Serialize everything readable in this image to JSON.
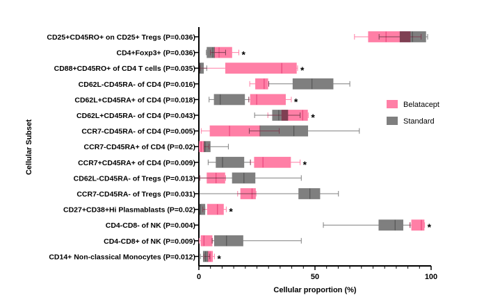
{
  "chart_data": {
    "type": "boxplot-horizontal",
    "xlabel": "Cellular proportion (%)",
    "ylabel": "Cellular Subset",
    "xlim": [
      0,
      100
    ],
    "xticks": [
      0,
      50,
      100
    ],
    "legend_position": "right",
    "series": [
      {
        "name": "Belatacept",
        "color": "#ff7fa6"
      },
      {
        "name": "Standard",
        "color": "#7f7f7f"
      }
    ],
    "significance_marker": "*",
    "categories": [
      {
        "label": "CD25+CD45RO+ on CD25+ Tregs (P=0.036)",
        "sig": false,
        "Belatacept": [
          67,
          73,
          80.6,
          91,
          95.7
        ],
        "Standard": [
          77.6,
          86.6,
          92,
          97.7,
          98.5
        ]
      },
      {
        "label": "CD4+Foxp3+ (P=0.036)",
        "sig": true,
        "Belatacept": [
          5,
          6.7,
          8.7,
          14.2,
          17.2
        ],
        "Standard": [
          3.2,
          3.5,
          6,
          6.7,
          11.5
        ]
      },
      {
        "label": "CD88+CD45RO+ of CD4 T cells (P=0.035)",
        "sig": true,
        "Belatacept": [
          0.5,
          11.5,
          35.7,
          42,
          42.5
        ],
        "Standard": [
          0,
          0,
          0.5,
          2,
          3.4
        ]
      },
      {
        "label": "CD62L-CD45RA- of CD4 (P=0.016)",
        "sig": false,
        "Belatacept": [
          21.9,
          24.4,
          28.1,
          29.7,
          30.1
        ],
        "Standard": [
          30.1,
          40.5,
          48.7,
          57.8,
          65
        ]
      },
      {
        "label": "CD62L+CD45RA+ of CD4 (P=0.018)",
        "sig": true,
        "Belatacept": [
          21.5,
          22.2,
          24.9,
          37.3,
          39.8
        ],
        "Standard": [
          4.4,
          6.6,
          9.2,
          19.7,
          21.5
        ]
      },
      {
        "label": "CD62L+CD45RA- of CD4 (P=0.043)",
        "sig": true,
        "Belatacept": [
          29.7,
          35.7,
          44.7,
          46.8,
          47.1
        ],
        "Standard": [
          24,
          31.7,
          34.4,
          38.3,
          43.6
        ]
      },
      {
        "label": "CCR7-CD45RA- of CD4 (P=0.005)",
        "sig": false,
        "Belatacept": [
          1,
          4.8,
          13.2,
          26.3,
          34.6
        ],
        "Standard": [
          21.7,
          26.3,
          40.9,
          46.9,
          69.1
        ]
      },
      {
        "label": "CCR7-CD45RA+ of CD4 (P=0.02)",
        "sig": false,
        "Belatacept": [
          0.2,
          0.2,
          1,
          2.2,
          4.4
        ],
        "Standard": [
          2.2,
          2.2,
          2.7,
          4.9,
          12.7
        ]
      },
      {
        "label": "CCR7+CD45RA+ of CD4 (P=0.009)",
        "sig": true,
        "Belatacept": [
          22.2,
          23.9,
          27.6,
          39.5,
          43.6
        ],
        "Standard": [
          4,
          7.4,
          10.2,
          19.4,
          22.2
        ]
      },
      {
        "label": "CD62L-CD45RA- of Tregs (P=0.013)",
        "sig": false,
        "Belatacept": [
          0.4,
          3.5,
          7.4,
          11.2,
          11.5
        ],
        "Standard": [
          0.4,
          14.4,
          19.4,
          24.2,
          44.1
        ]
      },
      {
        "label": "CCR7-CD45RA- of Tregs (P=0.031)",
        "sig": false,
        "Belatacept": [
          16.7,
          18,
          22.9,
          24.4,
          24.6
        ],
        "Standard": [
          0.2,
          43,
          47.8,
          52.1,
          60.1
        ]
      },
      {
        "label": "CD27+CD38+Hi Plasmablasts (P=0.02)",
        "sig": true,
        "Belatacept": [
          1.7,
          3.7,
          8,
          10.6,
          11.8
        ],
        "Standard": [
          0.2,
          0.2,
          0.7,
          2.6,
          2.6
        ]
      },
      {
        "label": "CD4-CD8- of NK (P=0.004)",
        "sig": true,
        "Belatacept": [
          90.8,
          91.6,
          95.8,
          97,
          97.2
        ],
        "Standard": [
          53.6,
          77.5,
          84.5,
          87.9,
          91
        ]
      },
      {
        "label": "CD4-CD8+ of NK (P=0.009)",
        "sig": false,
        "Belatacept": [
          0.2,
          0.9,
          2.2,
          5.7,
          5.9
        ],
        "Standard": [
          5.7,
          6.7,
          11.9,
          19,
          44.1
        ]
      },
      {
        "label": "CD14+ Non-classical Monocytes (P=0.012)",
        "sig": true,
        "Belatacept": [
          2.2,
          3.9,
          4.8,
          5.9,
          6.7
        ],
        "Standard": [
          0.7,
          1.9,
          2.9,
          3.9,
          4.7
        ]
      }
    ]
  }
}
